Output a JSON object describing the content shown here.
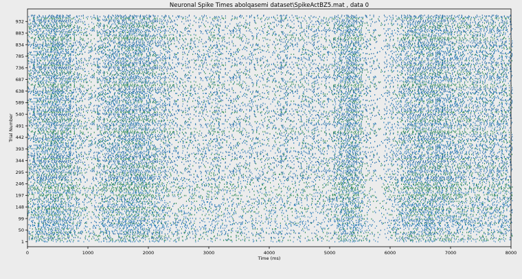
{
  "chart_data": {
    "type": "scatter",
    "title": "Neuronal Spike Times abolqasemi dataset\\SpikeActBZ5.mat , data 0",
    "xlabel": "Time (ms)",
    "ylabel": "Trial Number",
    "xlim": [
      0,
      8000
    ],
    "ylim": [
      -20,
      985
    ],
    "x_ticks": [
      0,
      1000,
      2000,
      3000,
      4000,
      5000,
      6000,
      7000,
      8000
    ],
    "y_ticks": [
      1,
      50,
      99,
      148,
      197,
      246,
      295,
      344,
      393,
      442,
      491,
      540,
      589,
      638,
      687,
      736,
      785,
      834,
      883,
      932
    ],
    "n_trials": 960,
    "marker_colors": [
      "#1f77b4",
      "#2a6fa8",
      "#4b8fc4",
      "#2e8b57"
    ],
    "spike_density_profile": [
      {
        "t": 0,
        "rate": 0.5
      },
      {
        "t": 200,
        "rate": 0.9
      },
      {
        "t": 500,
        "rate": 1.0
      },
      {
        "t": 800,
        "rate": 0.55
      },
      {
        "t": 1000,
        "rate": 0.25
      },
      {
        "t": 1300,
        "rate": 0.7
      },
      {
        "t": 1700,
        "rate": 1.0
      },
      {
        "t": 2100,
        "rate": 0.7
      },
      {
        "t": 2400,
        "rate": 0.35
      },
      {
        "t": 3000,
        "rate": 0.3
      },
      {
        "t": 3100,
        "rate": 0.55
      },
      {
        "t": 3200,
        "rate": 0.3
      },
      {
        "t": 4000,
        "rate": 0.32
      },
      {
        "t": 5000,
        "rate": 0.35
      },
      {
        "t": 5200,
        "rate": 0.85
      },
      {
        "t": 5400,
        "rate": 1.0
      },
      {
        "t": 5550,
        "rate": 0.4
      },
      {
        "t": 5800,
        "rate": 0.12
      },
      {
        "t": 6000,
        "rate": 0.35
      },
      {
        "t": 6300,
        "rate": 0.85
      },
      {
        "t": 6700,
        "rate": 0.9
      },
      {
        "t": 7200,
        "rate": 0.6
      },
      {
        "t": 8000,
        "rate": 0.55
      }
    ],
    "grid": false,
    "legend": "none"
  }
}
